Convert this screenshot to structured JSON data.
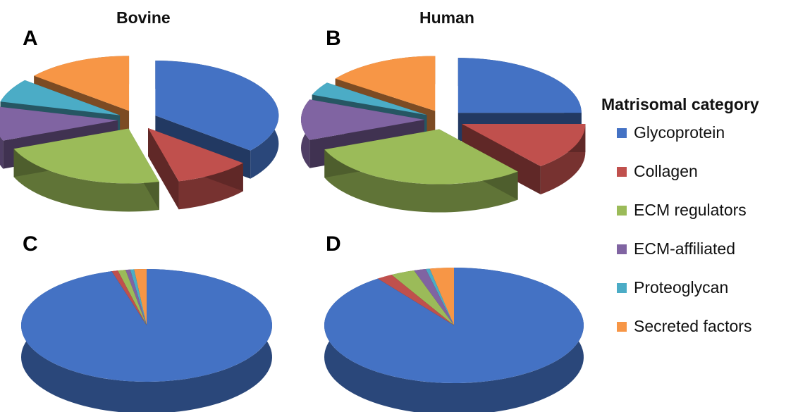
{
  "columns": {
    "bovine": "Bovine",
    "human": "Human"
  },
  "legend": {
    "title": "Matrisomal category",
    "items": [
      {
        "label": "Glycoprotein",
        "color": "#4472C4"
      },
      {
        "label": "Collagen",
        "color": "#C0504D"
      },
      {
        "label": "ECM regulators",
        "color": "#9BBB59"
      },
      {
        "label": "ECM-affiliated",
        "color": "#8064A2"
      },
      {
        "label": "Proteoglycan",
        "color": "#4BACC6"
      },
      {
        "label": "Secreted factors",
        "color": "#F79646"
      }
    ]
  },
  "chart_data": [
    {
      "type": "pie",
      "panel": "A",
      "title": "Bovine",
      "categories": [
        "Glycoprotein",
        "Collagen",
        "ECM regulators",
        "ECM-affiliated",
        "Proteoglycan",
        "Secreted factors"
      ],
      "values": [
        36,
        10,
        23,
        10,
        7,
        14
      ]
    },
    {
      "type": "pie",
      "panel": "B",
      "title": "Human",
      "categories": [
        "Glycoprotein",
        "Collagen",
        "ECM regulators",
        "ECM-affiliated",
        "Proteoglycan",
        "Secreted factors"
      ],
      "values": [
        25,
        14,
        30,
        12,
        4,
        15
      ]
    },
    {
      "type": "pie",
      "panel": "C",
      "title": "",
      "categories": [
        "Glycoprotein",
        "Collagen",
        "ECM regulators",
        "ECM-affiliated",
        "Proteoglycan",
        "Secreted factors"
      ],
      "values": [
        95.5,
        0.8,
        1.0,
        0.6,
        0.5,
        1.6
      ]
    },
    {
      "type": "pie",
      "panel": "D",
      "title": "",
      "categories": [
        "Glycoprotein",
        "Collagen",
        "ECM regulators",
        "ECM-affiliated",
        "Proteoglycan",
        "Secreted factors"
      ],
      "values": [
        90,
        2,
        3,
        1.5,
        0.5,
        3
      ]
    }
  ]
}
